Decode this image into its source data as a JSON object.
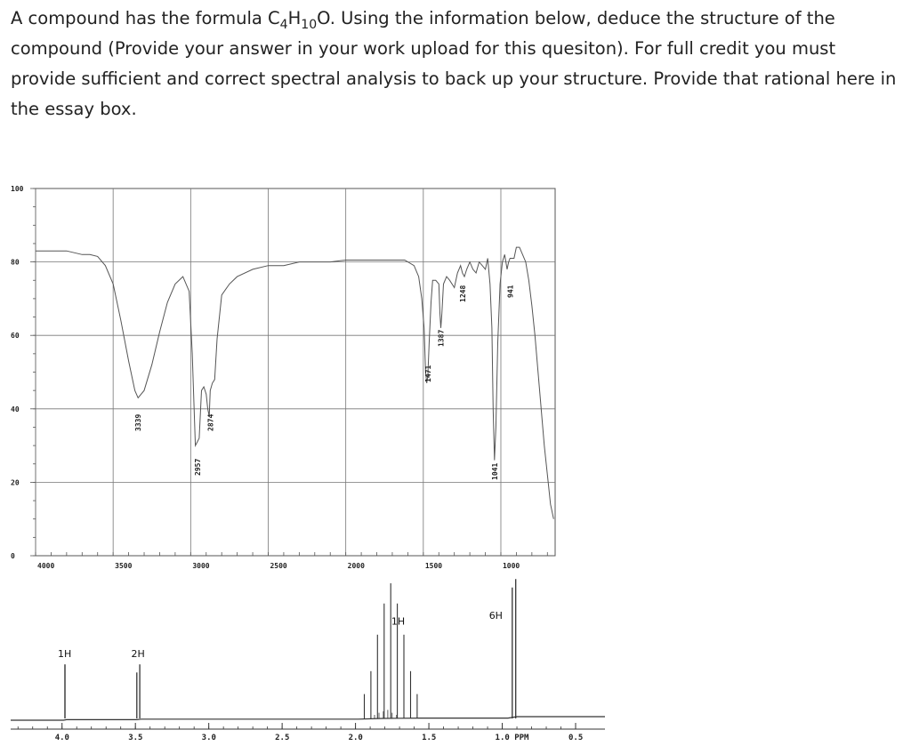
{
  "question": {
    "intro": "A compound has the formula C",
    "sub1": "4",
    "mid": "H",
    "sub2": "10",
    "rest": "O. Using the information below, deduce the structure of the compound (Provide your answer in your work upload for this quesiton). For full credit you must provide sufficient and correct spectral analysis to back up your structure.  Provide that rational here in the essay box."
  },
  "chart_data": [
    {
      "type": "line",
      "title": "",
      "xlabel": "",
      "ylabel": "",
      "xlim": [
        4000,
        650
      ],
      "ylim": [
        0,
        100
      ],
      "x_ticks": [
        "4000",
        "3500",
        "3000",
        "2500",
        "2000",
        "1500",
        "1000"
      ],
      "y_ticks": [
        "0",
        "20",
        "40",
        "60",
        "80",
        "100"
      ],
      "grid": true,
      "peak_labels": [
        "3339",
        "2957",
        "2874",
        "1471",
        "1387",
        "1248",
        "1041",
        "941"
      ],
      "series": [
        {
          "x": [
            4000,
            3900,
            3800,
            3700,
            3650,
            3600,
            3550,
            3500,
            3450,
            3400,
            3360,
            3339,
            3300,
            3250,
            3200,
            3150,
            3100,
            3050,
            3010,
            2990,
            2970,
            2957,
            2945,
            2930,
            2915,
            2900,
            2890,
            2880,
            2874,
            2860,
            2845,
            2830,
            2800,
            2750,
            2700,
            2600,
            2500,
            2400,
            2300,
            2200,
            2100,
            2000,
            1900,
            1800,
            1700,
            1620,
            1560,
            1530,
            1510,
            1495,
            1485,
            1478,
            1471,
            1462,
            1450,
            1440,
            1420,
            1400,
            1393,
            1387,
            1380,
            1370,
            1350,
            1330,
            1300,
            1280,
            1260,
            1248,
            1235,
            1220,
            1200,
            1180,
            1160,
            1140,
            1120,
            1100,
            1085,
            1070,
            1058,
            1050,
            1041,
            1032,
            1020,
            1005,
            990,
            975,
            960,
            950,
            941,
            930,
            915,
            900,
            880,
            860,
            840,
            820,
            800,
            780,
            760,
            740,
            720,
            700,
            680,
            660
          ],
          "y": [
            83,
            83,
            83,
            82,
            82,
            81.5,
            79,
            74,
            64,
            53,
            45,
            43,
            45,
            52,
            61,
            69,
            74,
            76,
            72,
            55,
            30,
            31,
            32,
            45,
            46,
            44,
            40,
            38,
            45,
            47,
            48,
            59,
            71,
            74,
            76,
            78,
            79,
            79,
            80,
            80,
            80,
            80.5,
            80.5,
            80.5,
            80.5,
            80.5,
            79,
            76,
            70,
            62,
            50,
            47,
            49,
            58,
            69,
            75,
            75,
            74,
            66,
            62,
            66,
            74,
            76,
            75,
            73,
            77,
            79,
            77,
            76,
            78,
            80,
            78,
            77,
            80,
            79,
            78,
            81,
            74,
            62,
            40,
            26,
            35,
            58,
            74,
            80,
            82,
            78,
            80,
            81,
            81,
            81,
            84,
            84,
            82,
            80,
            75,
            68,
            60,
            50,
            40,
            30,
            22,
            14,
            10
          ]
        }
      ]
    },
    {
      "type": "line",
      "title": "",
      "xlabel": "PPM",
      "ylabel": "",
      "xlim": [
        4.0,
        0.5
      ],
      "x_ticks": [
        "4.0",
        "3.5",
        "3.0",
        "2.5",
        "2.0",
        "1.5",
        "1.0 PPM",
        "0.5"
      ],
      "peaks": [
        {
          "ppm": 3.98,
          "label": "1H",
          "height": 0.38
        },
        {
          "ppm": 3.48,
          "label": "2H",
          "height": 0.38
        },
        {
          "ppm": 1.78,
          "label": "1H",
          "height": 0.95
        },
        {
          "ppm": 0.92,
          "label": "6H",
          "height": 1.0
        }
      ]
    }
  ]
}
